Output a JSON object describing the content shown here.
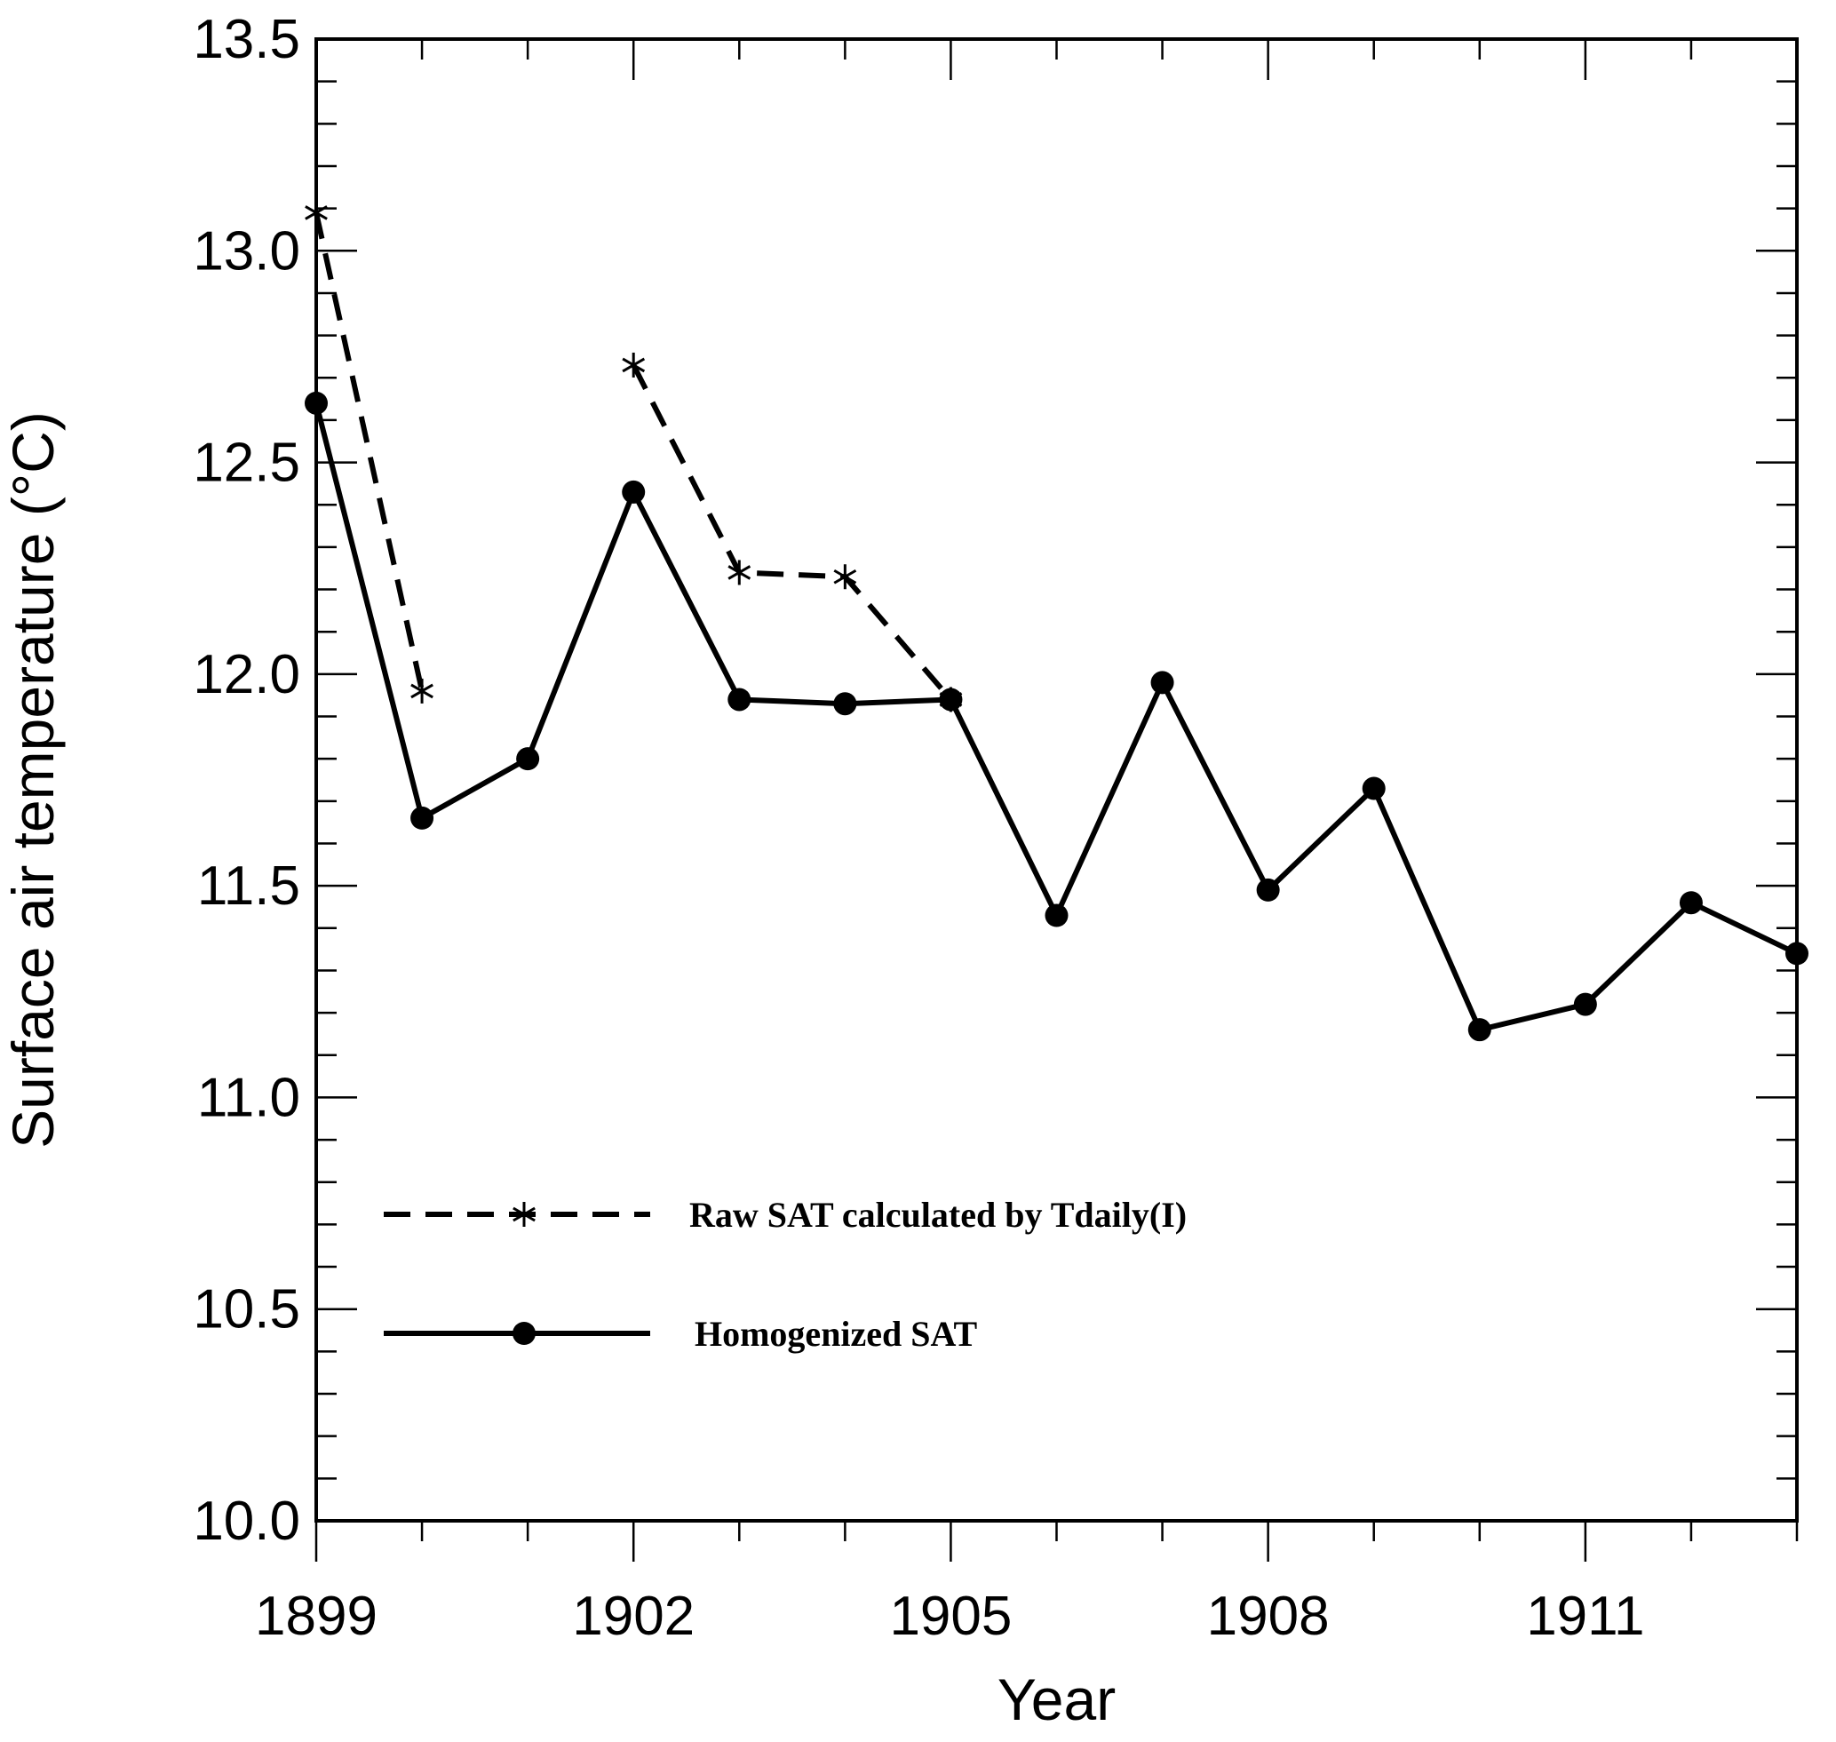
{
  "chart_data": {
    "type": "line",
    "title": "",
    "xlabel": "Year",
    "ylabel": "Surface air temperature (°C)",
    "xlim": [
      1899,
      1913
    ],
    "ylim": [
      10.0,
      13.5
    ],
    "x_ticks": [
      1899,
      1902,
      1905,
      1908,
      1911
    ],
    "x_tick_labels": [
      "1899",
      "1902",
      "1905",
      "1908",
      "1911"
    ],
    "y_ticks": [
      10.0,
      10.5,
      11.0,
      11.5,
      12.0,
      12.5,
      13.0,
      13.5
    ],
    "y_tick_labels": [
      "10.0",
      "10.5",
      "11.0",
      "11.5",
      "12.0",
      "12.5",
      "13.0",
      "13.5"
    ],
    "grid": false,
    "legend_position": "lower-left",
    "series": [
      {
        "name": "Raw SAT calculated by Tdaily(I)",
        "style": "dashed",
        "marker": "asterisk",
        "color": "#000000",
        "segments": [
          {
            "x": [
              1899,
              1900
            ],
            "y": [
              13.09,
              11.96
            ]
          },
          {
            "x": [
              1902,
              1903,
              1904,
              1905
            ],
            "y": [
              12.73,
              12.24,
              12.23,
              11.94
            ]
          }
        ]
      },
      {
        "name": "Homogenized SAT",
        "style": "solid",
        "marker": "circle",
        "color": "#000000",
        "x": [
          1899,
          1900,
          1901,
          1902,
          1903,
          1904,
          1905,
          1906,
          1907,
          1908,
          1909,
          1910,
          1911,
          1912,
          1913
        ],
        "y": [
          12.64,
          11.66,
          11.8,
          12.43,
          11.94,
          11.93,
          11.94,
          11.43,
          11.98,
          11.49,
          11.73,
          11.16,
          11.22,
          11.46,
          11.34
        ]
      }
    ]
  }
}
